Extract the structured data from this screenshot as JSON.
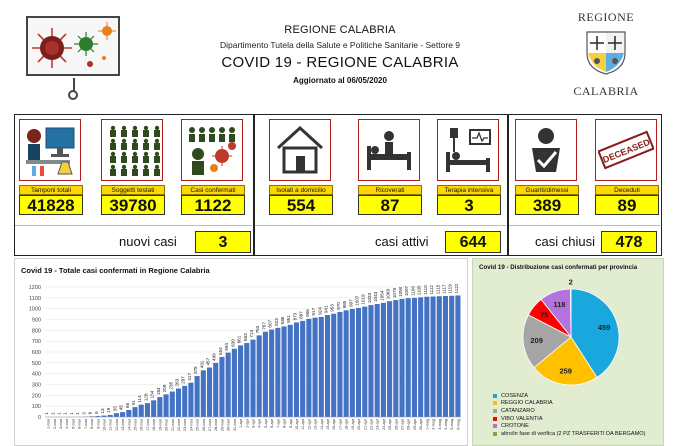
{
  "header": {
    "region": "REGIONE CALABRIA",
    "department": "Dipartimento Tutela della Salute e Politiche Sanitarie - Settore 9",
    "title": "COVID 19 - REGIONE CALABRIA",
    "updated_label": "Aggiornato al",
    "updated_date": "06/05/2020",
    "logo_top": "REGIONE",
    "logo_bottom": "CALABRIA"
  },
  "stats": {
    "tamponi": {
      "label": "Tamponi totali",
      "value": "41828",
      "icon": "lab-computer-icon"
    },
    "testati": {
      "label": "Soggetti testati",
      "value": "39780",
      "icon": "people-grid-icon"
    },
    "confermati": {
      "label": "Casi confermati",
      "value": "1122",
      "icon": "virus-crowd-icon"
    },
    "isolati": {
      "label": "Isolati a domicilio",
      "value": "554",
      "icon": "house-icon"
    },
    "ricoverati": {
      "label": "Ricoverati",
      "value": "87",
      "icon": "hospital-bed-icon"
    },
    "terapia": {
      "label": "Terapia intensiva",
      "value": "3",
      "icon": "icu-bed-icon"
    },
    "guariti": {
      "label": "Guariti/dimessi",
      "value": "389",
      "icon": "recovered-person-icon"
    },
    "deceduti": {
      "label": "Deceduti",
      "value": "89",
      "icon": "deceased-stamp-icon",
      "stamp_text": "DECEASED"
    }
  },
  "summary": {
    "nuovi_label": "nuovi casi",
    "nuovi_value": "3",
    "attivi_label": "casi attivi",
    "attivi_value": "644",
    "chiusi_label": "casi chiusi",
    "chiusi_value": "478"
  },
  "colors": {
    "bar": "#4472c4",
    "label_bg": "#ffd700",
    "value_bg": "#ffff00",
    "panel_border": "#b12020",
    "pie_bg": "#e1ecd1"
  },
  "chart_data": [
    {
      "type": "bar",
      "title": "Covid 19 - Totale casi confermati in Regione Calabria",
      "ylim": [
        0,
        1200
      ],
      "yticks": [
        0,
        100,
        200,
        300,
        400,
        500,
        600,
        700,
        800,
        900,
        1000,
        1100,
        1200
      ],
      "categories": [
        "1-mar",
        "2-mar",
        "3-mar",
        "4-mar",
        "5-mar",
        "6-mar",
        "7-mar",
        "8-mar",
        "9-mar",
        "10-mar",
        "11-mar",
        "12-mar",
        "13-mar",
        "14-mar",
        "15-mar",
        "16-mar",
        "17-mar",
        "18-mar",
        "19-mar",
        "20-mar",
        "21-mar",
        "22-mar",
        "23-mar",
        "24-mar",
        "25-mar",
        "26-mar",
        "27-mar",
        "28-mar",
        "29-mar",
        "30-mar",
        "31-mar",
        "1-apr",
        "2-apr",
        "3-apr",
        "4-apr",
        "5-apr",
        "6-apr",
        "7-apr",
        "8-apr",
        "9-apr",
        "10-apr",
        "11-apr",
        "12-apr",
        "13-apr",
        "14-apr",
        "15-apr",
        "16-apr",
        "17-apr",
        "18-apr",
        "19-apr",
        "20-apr",
        "21-apr",
        "22-apr",
        "23-apr",
        "24-apr",
        "25-apr",
        "26-apr",
        "27-apr",
        "28-apr",
        "29-apr",
        "30-apr",
        "1-mag",
        "2-mag",
        "3-mag",
        "4-mag",
        "5-mag",
        "6-mag"
      ],
      "values": [
        1,
        1,
        1,
        1,
        1,
        1,
        3,
        6,
        9,
        13,
        19,
        35,
        45,
        65,
        91,
        114,
        128,
        154,
        184,
        209,
        235,
        263,
        287,
        317,
        378,
        431,
        457,
        499,
        554,
        594,
        630,
        661,
        683,
        714,
        753,
        787,
        807,
        823,
        836,
        851,
        873,
        887,
        906,
        917,
        924,
        941,
        953,
        970,
        985,
        997,
        1007,
        1019,
        1033,
        1043,
        1054,
        1069,
        1079,
        1090,
        1097,
        1100,
        1105,
        1110,
        1112,
        1115,
        1117,
        1119,
        1122
      ]
    },
    {
      "type": "pie",
      "title": "Covid 19 - Distribuzione casi confermati per provincia",
      "slices": [
        {
          "name": "COSENZA",
          "value": 459,
          "color": "#19a7dd"
        },
        {
          "name": "REGGIO CALABRIA",
          "value": 259,
          "color": "#ffc000"
        },
        {
          "name": "CATANZARO",
          "value": 209,
          "color": "#a5a5a5"
        },
        {
          "name": "VIBO VALENTIA",
          "value": 75,
          "color": "#ff0000"
        },
        {
          "name": "CROTONE",
          "value": 118,
          "color": "#b472dc"
        },
        {
          "name": "altro/in fase di verifica (2 PZ TRASFERITI DA BERGAMO)",
          "value": 2,
          "color": "#70ad47"
        }
      ]
    }
  ]
}
